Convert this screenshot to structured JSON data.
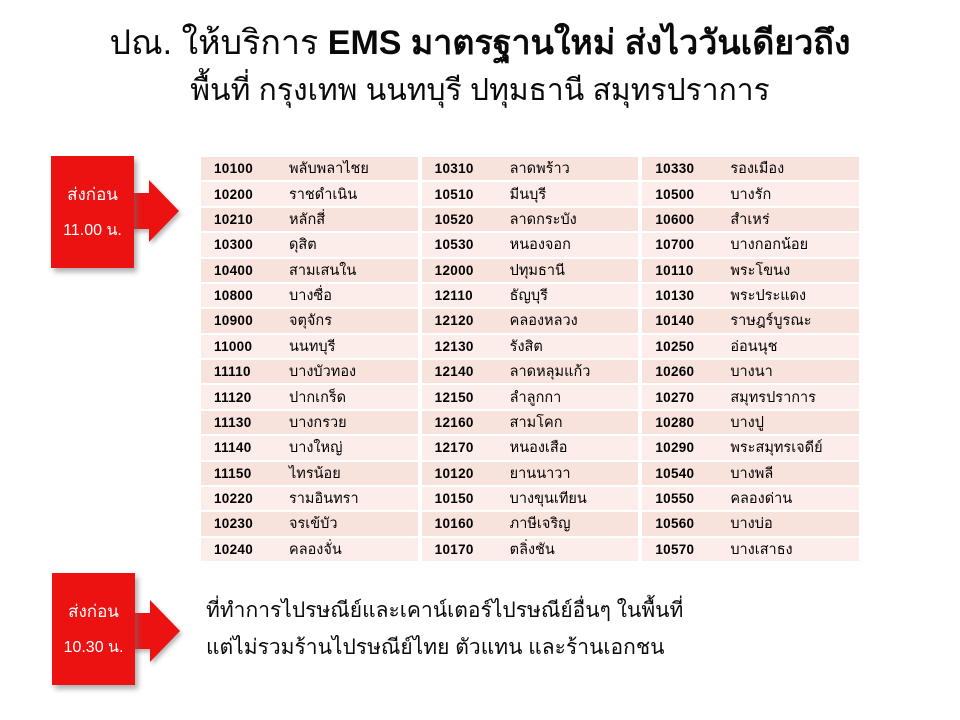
{
  "title": {
    "line1_regular": "ปณ. ให้บริการ ",
    "line1_bold": "EMS มาตรฐานใหม่ ส่งไววันเดียวถึง",
    "line2": "พื้นที่ กรุงเทพ นนทบุรี ปทุมธานี สมุทรปราการ"
  },
  "badges": {
    "top": {
      "line1": "ส่งก่อน",
      "line2": "11.00 น."
    },
    "bottom": {
      "line1": "ส่งก่อน",
      "line2": "10.30 น."
    }
  },
  "table": {
    "rows": [
      [
        {
          "code": "10100",
          "name": "พลับพลาไชย"
        },
        {
          "code": "10310",
          "name": "ลาดพร้าว"
        },
        {
          "code": "10330",
          "name": "รองเมือง"
        }
      ],
      [
        {
          "code": "10200",
          "name": "ราชดำเนิน"
        },
        {
          "code": "10510",
          "name": "มีนบุรี"
        },
        {
          "code": "10500",
          "name": "บางรัก"
        }
      ],
      [
        {
          "code": "10210",
          "name": "หลักสี่"
        },
        {
          "code": "10520",
          "name": "ลาดกระบัง"
        },
        {
          "code": "10600",
          "name": "สำเหร่"
        }
      ],
      [
        {
          "code": "10300",
          "name": "ดุสิต"
        },
        {
          "code": "10530",
          "name": "หนองจอก"
        },
        {
          "code": "10700",
          "name": "บางกอกน้อย"
        }
      ],
      [
        {
          "code": "10400",
          "name": "สามเสนใน"
        },
        {
          "code": "12000",
          "name": "ปทุมธานี"
        },
        {
          "code": "10110",
          "name": "พระโขนง"
        }
      ],
      [
        {
          "code": "10800",
          "name": "บางซื่อ"
        },
        {
          "code": "12110",
          "name": "ธัญบุรี"
        },
        {
          "code": "10130",
          "name": "พระประแดง"
        }
      ],
      [
        {
          "code": "10900",
          "name": "จตุจักร"
        },
        {
          "code": "12120",
          "name": "คลองหลวง"
        },
        {
          "code": "10140",
          "name": "ราษฎร์บูรณะ"
        }
      ],
      [
        {
          "code": "11000",
          "name": "นนทบุรี"
        },
        {
          "code": "12130",
          "name": "รังสิต"
        },
        {
          "code": "10250",
          "name": "อ่อนนุช"
        }
      ],
      [
        {
          "code": "11110",
          "name": "บางบัวทอง"
        },
        {
          "code": "12140",
          "name": "ลาดหลุมแก้ว"
        },
        {
          "code": "10260",
          "name": "บางนา"
        }
      ],
      [
        {
          "code": "11120",
          "name": "ปากเกร็ด"
        },
        {
          "code": "12150",
          "name": "ลำลูกกา"
        },
        {
          "code": "10270",
          "name": "สมุทรปราการ"
        }
      ],
      [
        {
          "code": "11130",
          "name": "บางกรวย"
        },
        {
          "code": "12160",
          "name": "สามโคก"
        },
        {
          "code": "10280",
          "name": "บางปู"
        }
      ],
      [
        {
          "code": "11140",
          "name": "บางใหญ่"
        },
        {
          "code": "12170",
          "name": "หนองเสือ"
        },
        {
          "code": "10290",
          "name": "พระสมุทรเจดีย์"
        }
      ],
      [
        {
          "code": "11150",
          "name": "ไทรน้อย"
        },
        {
          "code": "10120",
          "name": "ยานนาวา"
        },
        {
          "code": "10540",
          "name": "บางพลี"
        }
      ],
      [
        {
          "code": "10220",
          "name": "รามอินทรา"
        },
        {
          "code": "10150",
          "name": "บางขุนเทียน"
        },
        {
          "code": "10550",
          "name": "คลองด่าน"
        }
      ],
      [
        {
          "code": "10230",
          "name": "จรเข้บัว"
        },
        {
          "code": "10160",
          "name": "ภาษีเจริญ"
        },
        {
          "code": "10560",
          "name": "บางบ่อ"
        }
      ],
      [
        {
          "code": "10240",
          "name": "คลองจั่น"
        },
        {
          "code": "10170",
          "name": "ตลิ่งชัน"
        },
        {
          "code": "10570",
          "name": "บางเสาธง"
        }
      ]
    ]
  },
  "footnote": {
    "line1": "ที่ทำการไปรษณีย์และเคาน์เตอร์ไปรษณีย์อื่นๆ ในพื้นที่",
    "line2": "แต่ไม่รวมร้านไปรษณีย์ไทย ตัวแทน และร้านเอกชน"
  },
  "colors": {
    "accent_red": "#ed1212",
    "row_odd": "#f8e2dc",
    "row_even": "#fcedea",
    "text": "#0a0a0a",
    "badge_text": "#ffffff"
  }
}
